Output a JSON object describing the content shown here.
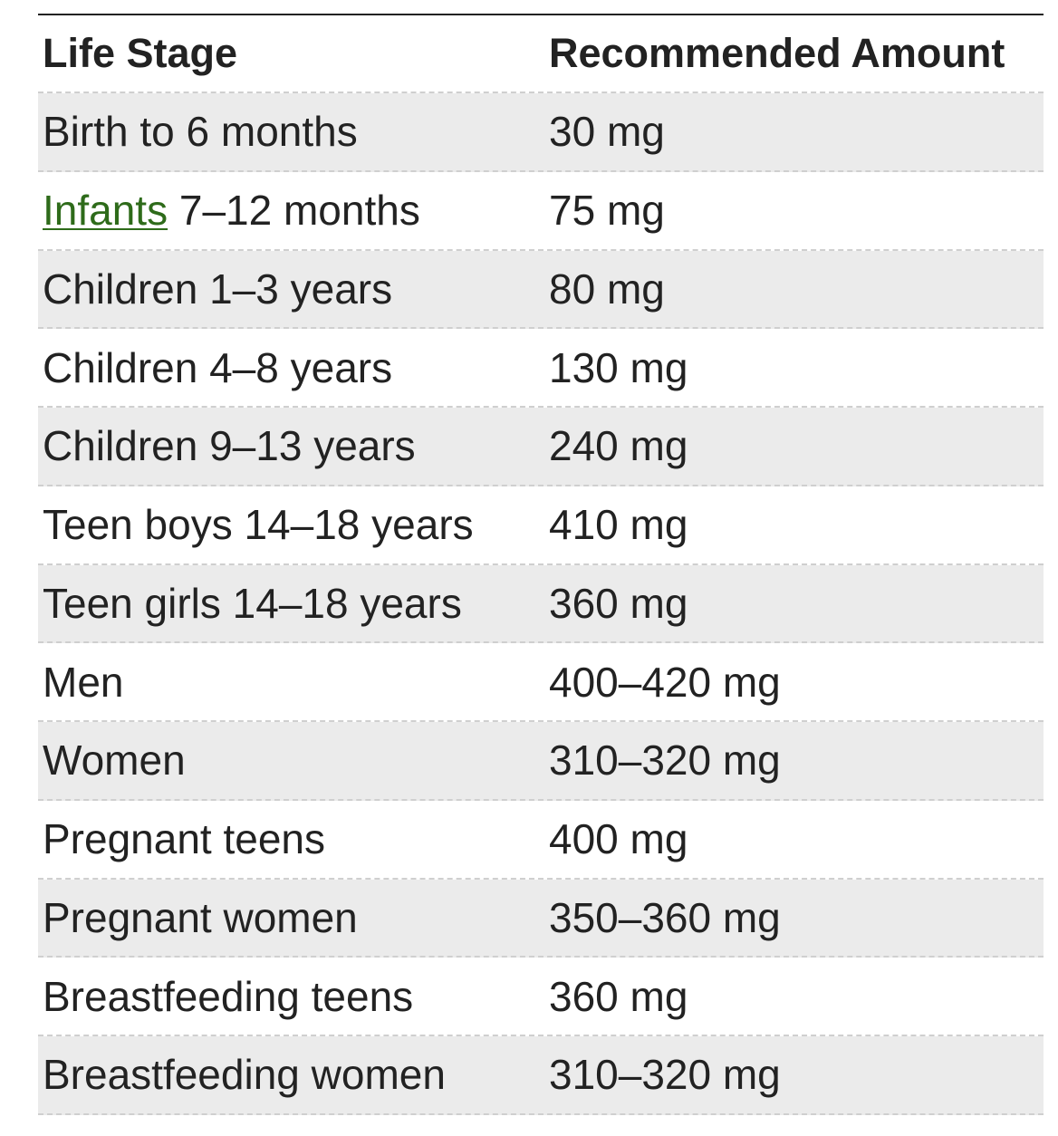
{
  "table": {
    "header": [
      "Life Stage",
      "Recommended Amount"
    ],
    "rows": [
      [
        "Birth to 6 months",
        "30 mg"
      ],
      [
        {
          "link": "Infants",
          "text": "7–12 months"
        },
        "75 mg"
      ],
      [
        "Children 1–3 years",
        "80 mg"
      ],
      [
        "Children 4–8 years",
        "130 mg"
      ],
      [
        "Children 9–13 years",
        "240 mg"
      ],
      [
        "Teen boys 14–18 years",
        "410 mg"
      ],
      [
        "Teen girls 14–18 years",
        "360 mg"
      ],
      [
        "Men",
        "400–420 mg"
      ],
      [
        "Women",
        "310–320 mg"
      ],
      [
        "Pregnant teens",
        "400 mg"
      ],
      [
        "Pregnant women",
        "350–360 mg"
      ],
      [
        "Breastfeeding teens",
        "360 mg"
      ],
      [
        "Breastfeeding women",
        "310–320 mg"
      ]
    ]
  }
}
